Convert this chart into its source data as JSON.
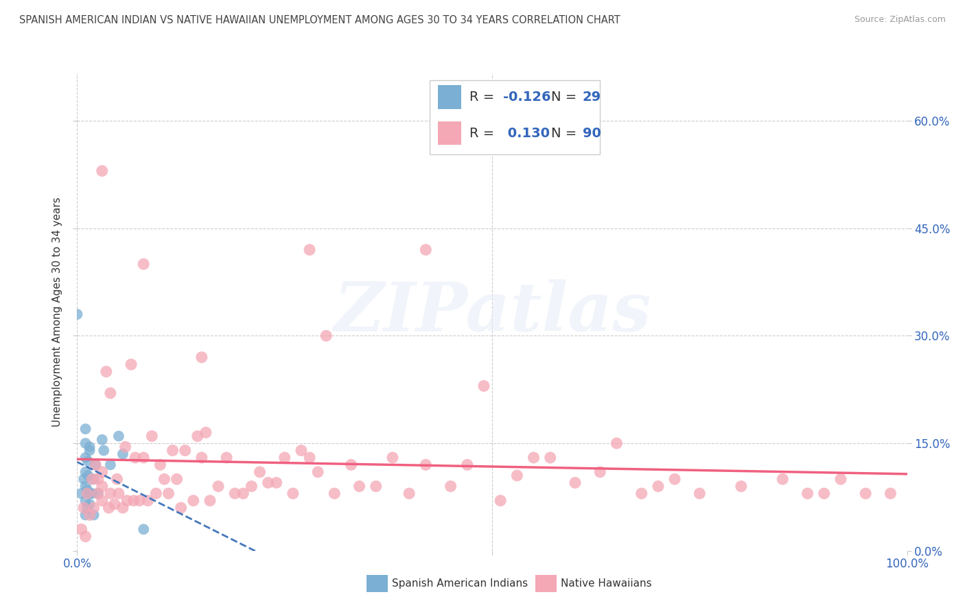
{
  "title": "SPANISH AMERICAN INDIAN VS NATIVE HAWAIIAN UNEMPLOYMENT AMONG AGES 30 TO 34 YEARS CORRELATION CHART",
  "source": "Source: ZipAtlas.com",
  "ylabel": "Unemployment Among Ages 30 to 34 years",
  "xlim": [
    0,
    1.0
  ],
  "ylim": [
    0,
    0.666
  ],
  "yticks": [
    0.0,
    0.15,
    0.3,
    0.45,
    0.6
  ],
  "yticklabels_right": [
    "0.0%",
    "15.0%",
    "30.0%",
    "45.0%",
    "60.0%"
  ],
  "legend_R1": "-0.126",
  "legend_N1": "29",
  "legend_R2": "0.130",
  "legend_N2": "90",
  "color_blue": "#7BAFD4",
  "color_pink": "#F4A7B5",
  "color_blue_line": "#4477BB",
  "color_pink_line": "#F06080",
  "color_blue_text": "#3366BB",
  "color_pink_text": "#3366BB",
  "grid_color": "#CCCCCC",
  "background_color": "#FFFFFF",
  "title_fontsize": 10.5,
  "axis_label_fontsize": 11,
  "tick_fontsize": 12,
  "legend_fontsize": 14,
  "watermark_text": "ZIPatlas",
  "blue_x": [
    0.005,
    0.008,
    0.01,
    0.01,
    0.01,
    0.01,
    0.01,
    0.01,
    0.01,
    0.012,
    0.012,
    0.013,
    0.013,
    0.015,
    0.015,
    0.015,
    0.015,
    0.018,
    0.02,
    0.02,
    0.022,
    0.025,
    0.03,
    0.032,
    0.04,
    0.05,
    0.055,
    0.08,
    0.0
  ],
  "blue_y": [
    0.08,
    0.1,
    0.05,
    0.07,
    0.09,
    0.11,
    0.13,
    0.15,
    0.17,
    0.06,
    0.085,
    0.105,
    0.125,
    0.065,
    0.08,
    0.14,
    0.145,
    0.08,
    0.05,
    0.1,
    0.12,
    0.08,
    0.155,
    0.14,
    0.12,
    0.16,
    0.135,
    0.03,
    0.33
  ],
  "pink_x": [
    0.005,
    0.008,
    0.01,
    0.012,
    0.015,
    0.018,
    0.02,
    0.022,
    0.025,
    0.025,
    0.03,
    0.03,
    0.03,
    0.035,
    0.038,
    0.04,
    0.04,
    0.045,
    0.048,
    0.05,
    0.055,
    0.058,
    0.06,
    0.065,
    0.068,
    0.07,
    0.075,
    0.08,
    0.085,
    0.09,
    0.095,
    0.1,
    0.105,
    0.11,
    0.115,
    0.12,
    0.125,
    0.13,
    0.14,
    0.145,
    0.15,
    0.155,
    0.16,
    0.17,
    0.18,
    0.19,
    0.2,
    0.21,
    0.22,
    0.23,
    0.24,
    0.25,
    0.26,
    0.27,
    0.28,
    0.29,
    0.3,
    0.31,
    0.33,
    0.34,
    0.36,
    0.38,
    0.4,
    0.42,
    0.45,
    0.47,
    0.49,
    0.51,
    0.53,
    0.55,
    0.57,
    0.6,
    0.63,
    0.65,
    0.68,
    0.7,
    0.72,
    0.75,
    0.8,
    0.85,
    0.88,
    0.9,
    0.92,
    0.95,
    0.98,
    0.03,
    0.08,
    0.15,
    0.28,
    0.42
  ],
  "pink_y": [
    0.03,
    0.06,
    0.02,
    0.08,
    0.05,
    0.1,
    0.06,
    0.12,
    0.08,
    0.1,
    0.07,
    0.09,
    0.11,
    0.25,
    0.06,
    0.08,
    0.22,
    0.065,
    0.1,
    0.08,
    0.06,
    0.145,
    0.07,
    0.26,
    0.07,
    0.13,
    0.07,
    0.13,
    0.07,
    0.16,
    0.08,
    0.12,
    0.1,
    0.08,
    0.14,
    0.1,
    0.06,
    0.14,
    0.07,
    0.16,
    0.13,
    0.165,
    0.07,
    0.09,
    0.13,
    0.08,
    0.08,
    0.09,
    0.11,
    0.095,
    0.095,
    0.13,
    0.08,
    0.14,
    0.13,
    0.11,
    0.3,
    0.08,
    0.12,
    0.09,
    0.09,
    0.13,
    0.08,
    0.12,
    0.09,
    0.12,
    0.23,
    0.07,
    0.105,
    0.13,
    0.13,
    0.095,
    0.11,
    0.15,
    0.08,
    0.09,
    0.1,
    0.08,
    0.09,
    0.1,
    0.08,
    0.08,
    0.1,
    0.08,
    0.08,
    0.53,
    0.4,
    0.27,
    0.42,
    0.42
  ]
}
